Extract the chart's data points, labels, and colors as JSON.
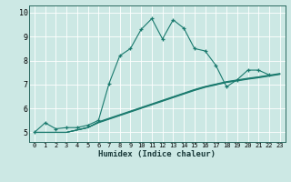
{
  "xlabel": "Humidex (Indice chaleur)",
  "ylabel": "",
  "background_color": "#cce8e4",
  "grid_color": "#ffffff",
  "line_color": "#1a7a6e",
  "xlim": [
    -0.5,
    23.5
  ],
  "ylim": [
    4.6,
    10.3
  ],
  "yticks": [
    5,
    6,
    7,
    8,
    9,
    10
  ],
  "xticks": [
    0,
    1,
    2,
    3,
    4,
    5,
    6,
    7,
    8,
    9,
    10,
    11,
    12,
    13,
    14,
    15,
    16,
    17,
    18,
    19,
    20,
    21,
    22,
    23
  ],
  "series": [
    {
      "x": [
        0,
        1,
        2,
        3,
        4,
        5,
        6,
        7,
        8,
        9,
        10,
        11,
        12,
        13,
        14,
        15,
        16,
        17,
        18,
        19,
        20,
        21,
        22
      ],
      "y": [
        5.0,
        5.4,
        5.15,
        5.2,
        5.2,
        5.3,
        5.5,
        7.05,
        8.2,
        8.5,
        9.3,
        9.75,
        8.9,
        9.7,
        9.35,
        8.5,
        8.4,
        7.8,
        6.9,
        7.2,
        7.6,
        7.6,
        7.4
      ],
      "marker": "+"
    },
    {
      "x": [
        0,
        3,
        4,
        5,
        6,
        7,
        8,
        9,
        10,
        11,
        12,
        13,
        14,
        15,
        16,
        17,
        18,
        19,
        20,
        21,
        22,
        23
      ],
      "y": [
        5.0,
        5.0,
        5.1,
        5.2,
        5.4,
        5.55,
        5.7,
        5.85,
        6.0,
        6.15,
        6.3,
        6.45,
        6.6,
        6.75,
        6.88,
        6.98,
        7.08,
        7.15,
        7.22,
        7.28,
        7.35,
        7.42
      ],
      "marker": null
    },
    {
      "x": [
        0,
        3,
        4,
        5,
        6,
        7,
        8,
        9,
        10,
        11,
        12,
        13,
        14,
        15,
        16,
        17,
        18,
        19,
        20,
        21,
        22,
        23
      ],
      "y": [
        5.0,
        5.0,
        5.1,
        5.2,
        5.42,
        5.57,
        5.72,
        5.87,
        6.02,
        6.17,
        6.32,
        6.47,
        6.62,
        6.77,
        6.9,
        7.0,
        7.1,
        7.17,
        7.24,
        7.3,
        7.37,
        7.44
      ],
      "marker": null
    },
    {
      "x": [
        0,
        3,
        4,
        5,
        6,
        7,
        8,
        9,
        10,
        11,
        12,
        13,
        14,
        15,
        16,
        17,
        18,
        19,
        20,
        21,
        22,
        23
      ],
      "y": [
        5.0,
        5.0,
        5.1,
        5.2,
        5.44,
        5.59,
        5.74,
        5.89,
        6.04,
        6.19,
        6.34,
        6.49,
        6.64,
        6.79,
        6.92,
        7.02,
        7.12,
        7.19,
        7.26,
        7.32,
        7.39,
        7.46
      ],
      "marker": null
    }
  ]
}
